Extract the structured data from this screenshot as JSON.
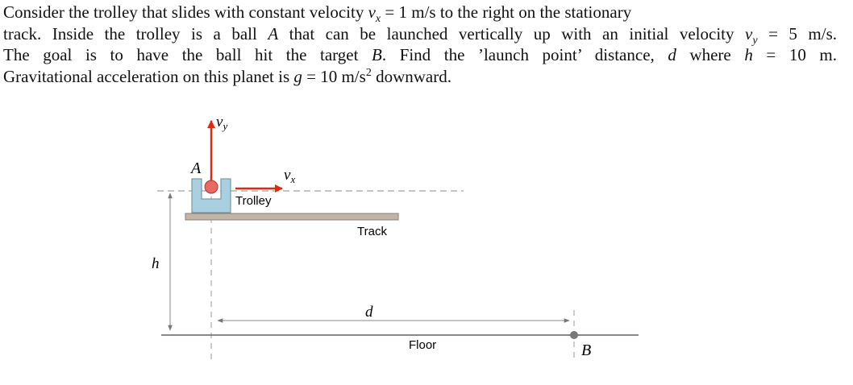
{
  "problem": {
    "lines": [
      [
        "Consider the trolley that slides with constant velocity ",
        "v",
        "x",
        " = 1 m/s to the right on the stationary"
      ],
      [
        "track. Inside the trolley is a ball ",
        "A",
        " that can be launched vertically up with an initial velocity ",
        "v",
        "y",
        " = 5 m/s."
      ],
      [
        "The goal is to have the ball hit the target ",
        "B",
        ". Find the ’launch point’ distance, ",
        "d",
        " where ",
        "h",
        " = 10 m."
      ],
      [
        "Gravitational acceleration on this planet is ",
        "g",
        " = 10 m/s",
        "2",
        " downward."
      ]
    ]
  },
  "diagram": {
    "vy": [
      "v",
      "y"
    ],
    "ball": "A",
    "vx": [
      "v",
      "x"
    ],
    "trolley": "Trolley",
    "track": "Track",
    "height": "h",
    "distance": "d",
    "floor": "Floor",
    "target": "B"
  }
}
